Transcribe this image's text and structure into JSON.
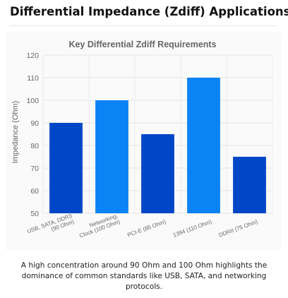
{
  "page": {
    "heading": "Differential Impedance (Zdiff) Applications",
    "caption": "A high concentration around 90 Ohm and 100 Ohm highlights the dominance of common standards like USB, SATA, and networking protocols."
  },
  "chart_data": {
    "type": "bar",
    "title": "Key Differential Zdiff Requirements",
    "xlabel": "",
    "ylabel": "Impedance (Ohm)",
    "ylim": [
      50,
      120
    ],
    "yticks": [
      50,
      60,
      70,
      80,
      90,
      100,
      110,
      120
    ],
    "grid": true,
    "legend": "none",
    "categories": [
      [
        "USB, SATA, DDR3",
        "(90 Ohm)"
      ],
      [
        "Networking,",
        "Clock (100 Ohm)"
      ],
      [
        "PCI-E (85 Ohm)"
      ],
      [
        "1394 (110 Ohm)"
      ],
      [
        "DDRII (75 Ohm)"
      ]
    ],
    "values": [
      90,
      100,
      85,
      110,
      75
    ],
    "bar_colors": [
      "#0047c7",
      "#0a84f5",
      "#0047c7",
      "#0a84f5",
      "#0047c7"
    ]
  }
}
